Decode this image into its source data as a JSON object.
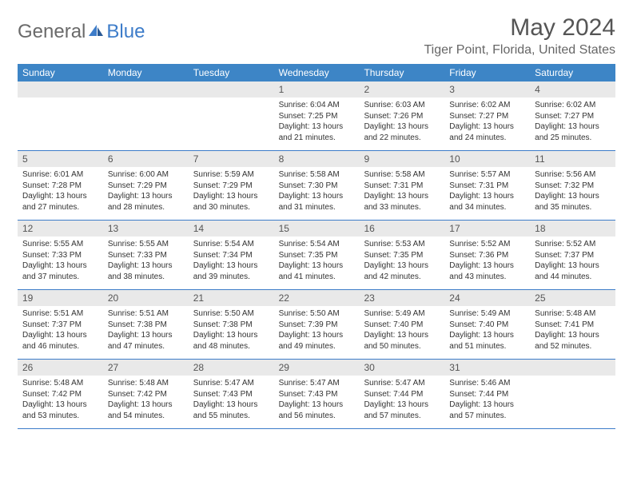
{
  "brand": {
    "general": "General",
    "blue": "Blue"
  },
  "title": "May 2024",
  "location": "Tiger Point, Florida, United States",
  "colors": {
    "header_bg": "#3d85c6",
    "header_fg": "#ffffff",
    "daynum_bg": "#e9e9e9",
    "border": "#3d7cc9"
  },
  "day_headers": [
    "Sunday",
    "Monday",
    "Tuesday",
    "Wednesday",
    "Thursday",
    "Friday",
    "Saturday"
  ],
  "weeks": [
    [
      {
        "n": "",
        "lines": []
      },
      {
        "n": "",
        "lines": []
      },
      {
        "n": "",
        "lines": []
      },
      {
        "n": "1",
        "lines": [
          "Sunrise: 6:04 AM",
          "Sunset: 7:25 PM",
          "Daylight: 13 hours and 21 minutes."
        ]
      },
      {
        "n": "2",
        "lines": [
          "Sunrise: 6:03 AM",
          "Sunset: 7:26 PM",
          "Daylight: 13 hours and 22 minutes."
        ]
      },
      {
        "n": "3",
        "lines": [
          "Sunrise: 6:02 AM",
          "Sunset: 7:27 PM",
          "Daylight: 13 hours and 24 minutes."
        ]
      },
      {
        "n": "4",
        "lines": [
          "Sunrise: 6:02 AM",
          "Sunset: 7:27 PM",
          "Daylight: 13 hours and 25 minutes."
        ]
      }
    ],
    [
      {
        "n": "5",
        "lines": [
          "Sunrise: 6:01 AM",
          "Sunset: 7:28 PM",
          "Daylight: 13 hours and 27 minutes."
        ]
      },
      {
        "n": "6",
        "lines": [
          "Sunrise: 6:00 AM",
          "Sunset: 7:29 PM",
          "Daylight: 13 hours and 28 minutes."
        ]
      },
      {
        "n": "7",
        "lines": [
          "Sunrise: 5:59 AM",
          "Sunset: 7:29 PM",
          "Daylight: 13 hours and 30 minutes."
        ]
      },
      {
        "n": "8",
        "lines": [
          "Sunrise: 5:58 AM",
          "Sunset: 7:30 PM",
          "Daylight: 13 hours and 31 minutes."
        ]
      },
      {
        "n": "9",
        "lines": [
          "Sunrise: 5:58 AM",
          "Sunset: 7:31 PM",
          "Daylight: 13 hours and 33 minutes."
        ]
      },
      {
        "n": "10",
        "lines": [
          "Sunrise: 5:57 AM",
          "Sunset: 7:31 PM",
          "Daylight: 13 hours and 34 minutes."
        ]
      },
      {
        "n": "11",
        "lines": [
          "Sunrise: 5:56 AM",
          "Sunset: 7:32 PM",
          "Daylight: 13 hours and 35 minutes."
        ]
      }
    ],
    [
      {
        "n": "12",
        "lines": [
          "Sunrise: 5:55 AM",
          "Sunset: 7:33 PM",
          "Daylight: 13 hours and 37 minutes."
        ]
      },
      {
        "n": "13",
        "lines": [
          "Sunrise: 5:55 AM",
          "Sunset: 7:33 PM",
          "Daylight: 13 hours and 38 minutes."
        ]
      },
      {
        "n": "14",
        "lines": [
          "Sunrise: 5:54 AM",
          "Sunset: 7:34 PM",
          "Daylight: 13 hours and 39 minutes."
        ]
      },
      {
        "n": "15",
        "lines": [
          "Sunrise: 5:54 AM",
          "Sunset: 7:35 PM",
          "Daylight: 13 hours and 41 minutes."
        ]
      },
      {
        "n": "16",
        "lines": [
          "Sunrise: 5:53 AM",
          "Sunset: 7:35 PM",
          "Daylight: 13 hours and 42 minutes."
        ]
      },
      {
        "n": "17",
        "lines": [
          "Sunrise: 5:52 AM",
          "Sunset: 7:36 PM",
          "Daylight: 13 hours and 43 minutes."
        ]
      },
      {
        "n": "18",
        "lines": [
          "Sunrise: 5:52 AM",
          "Sunset: 7:37 PM",
          "Daylight: 13 hours and 44 minutes."
        ]
      }
    ],
    [
      {
        "n": "19",
        "lines": [
          "Sunrise: 5:51 AM",
          "Sunset: 7:37 PM",
          "Daylight: 13 hours and 46 minutes."
        ]
      },
      {
        "n": "20",
        "lines": [
          "Sunrise: 5:51 AM",
          "Sunset: 7:38 PM",
          "Daylight: 13 hours and 47 minutes."
        ]
      },
      {
        "n": "21",
        "lines": [
          "Sunrise: 5:50 AM",
          "Sunset: 7:38 PM",
          "Daylight: 13 hours and 48 minutes."
        ]
      },
      {
        "n": "22",
        "lines": [
          "Sunrise: 5:50 AM",
          "Sunset: 7:39 PM",
          "Daylight: 13 hours and 49 minutes."
        ]
      },
      {
        "n": "23",
        "lines": [
          "Sunrise: 5:49 AM",
          "Sunset: 7:40 PM",
          "Daylight: 13 hours and 50 minutes."
        ]
      },
      {
        "n": "24",
        "lines": [
          "Sunrise: 5:49 AM",
          "Sunset: 7:40 PM",
          "Daylight: 13 hours and 51 minutes."
        ]
      },
      {
        "n": "25",
        "lines": [
          "Sunrise: 5:48 AM",
          "Sunset: 7:41 PM",
          "Daylight: 13 hours and 52 minutes."
        ]
      }
    ],
    [
      {
        "n": "26",
        "lines": [
          "Sunrise: 5:48 AM",
          "Sunset: 7:42 PM",
          "Daylight: 13 hours and 53 minutes."
        ]
      },
      {
        "n": "27",
        "lines": [
          "Sunrise: 5:48 AM",
          "Sunset: 7:42 PM",
          "Daylight: 13 hours and 54 minutes."
        ]
      },
      {
        "n": "28",
        "lines": [
          "Sunrise: 5:47 AM",
          "Sunset: 7:43 PM",
          "Daylight: 13 hours and 55 minutes."
        ]
      },
      {
        "n": "29",
        "lines": [
          "Sunrise: 5:47 AM",
          "Sunset: 7:43 PM",
          "Daylight: 13 hours and 56 minutes."
        ]
      },
      {
        "n": "30",
        "lines": [
          "Sunrise: 5:47 AM",
          "Sunset: 7:44 PM",
          "Daylight: 13 hours and 57 minutes."
        ]
      },
      {
        "n": "31",
        "lines": [
          "Sunrise: 5:46 AM",
          "Sunset: 7:44 PM",
          "Daylight: 13 hours and 57 minutes."
        ]
      },
      {
        "n": "",
        "lines": []
      }
    ]
  ]
}
